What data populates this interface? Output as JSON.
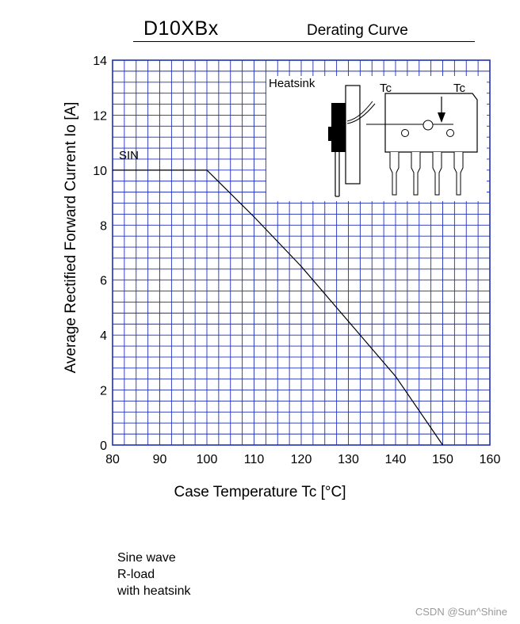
{
  "header": {
    "part_number": "D10XBx",
    "title": "Derating Curve"
  },
  "chart_data": {
    "type": "line",
    "title": "Derating Curve",
    "xlabel": "Case Temperature  Tc  [°C]",
    "ylabel": "Average Rectified Forward Current  Io [A]",
    "xlim": [
      80,
      160
    ],
    "ylim": [
      0,
      14
    ],
    "xticks": [
      80,
      90,
      100,
      110,
      120,
      130,
      140,
      150,
      160
    ],
    "yticks": [
      0,
      2,
      4,
      6,
      8,
      10,
      12,
      14
    ],
    "grid": true,
    "series": [
      {
        "name": "SIN",
        "x": [
          80,
          100,
          110,
          120,
          130,
          140,
          150
        ],
        "y": [
          10,
          10,
          8.3,
          6.5,
          4.5,
          2.5,
          0
        ]
      }
    ],
    "annotations": {
      "series_label": "SIN",
      "heatsink_label": "Heatsink",
      "tc_label_left": "Tc",
      "tc_label_right": "Tc"
    }
  },
  "notes": [
    "Sine wave",
    "R-load",
    "with  heatsink"
  ],
  "watermark": "CSDN @Sun^Shine",
  "colors": {
    "grid": "#1f2fb8",
    "frame": "#1f2fb8",
    "curve": "#000000"
  }
}
